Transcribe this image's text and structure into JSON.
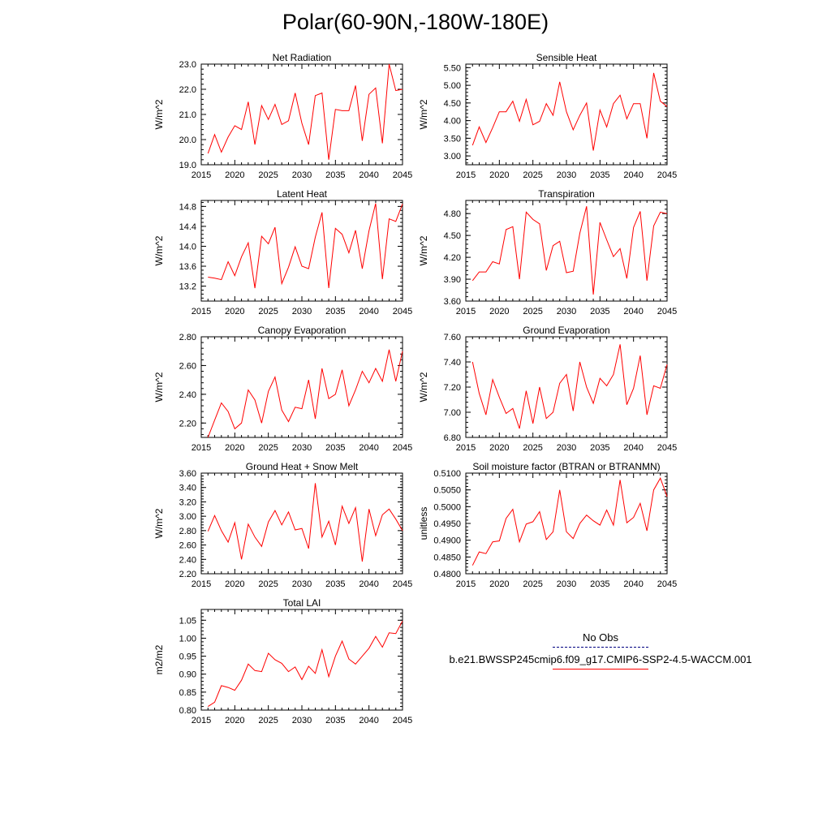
{
  "title": "Polar(60-90N,-180W-180E)",
  "colors": {
    "series": "#ff0000",
    "obs": "#000080",
    "axis": "#000000"
  },
  "legend": {
    "obs_label": "No Obs",
    "sim_label": "b.e21.BWSSP245cmip6.f09_g17.CMIP6-SSP2-4.5-WACCM.001"
  },
  "chart_data": [
    {
      "type": "line",
      "title": "Net Radiation",
      "ylabel": "W/m^2",
      "xlim": [
        2015,
        2045
      ],
      "ylim": [
        19.0,
        23.0
      ],
      "xticks": [
        2015,
        2020,
        2025,
        2030,
        2035,
        2040,
        2045
      ],
      "yticks": [
        "19.0",
        "20.0",
        "21.0",
        "22.0",
        "23.0"
      ],
      "x": [
        2016,
        2017,
        2018,
        2019,
        2020,
        2021,
        2022,
        2023,
        2024,
        2025,
        2026,
        2027,
        2028,
        2029,
        2030,
        2031,
        2032,
        2033,
        2034,
        2035,
        2036,
        2037,
        2038,
        2039,
        2040,
        2041,
        2042,
        2043,
        2044,
        2045
      ],
      "series": [
        {
          "name": "b.e21.BWSSP245cmip6.f09_g17.CMIP6-SSP2-4.5-WACCM.001",
          "values": [
            19.45,
            20.2,
            19.5,
            20.1,
            20.55,
            20.4,
            21.5,
            19.8,
            21.35,
            20.8,
            21.4,
            20.6,
            20.75,
            21.85,
            20.65,
            19.8,
            21.75,
            21.85,
            19.2,
            21.2,
            21.15,
            21.15,
            22.15,
            19.95,
            21.8,
            22.05,
            19.85,
            23.0,
            21.95,
            22.0
          ]
        }
      ]
    },
    {
      "type": "line",
      "title": "Sensible Heat",
      "ylabel": "W/m^2",
      "xlim": [
        2015,
        2045
      ],
      "ylim": [
        2.75,
        5.6
      ],
      "xticks": [
        2015,
        2020,
        2025,
        2030,
        2035,
        2040,
        2045
      ],
      "yticks": [
        "3.00",
        "3.50",
        "4.00",
        "4.50",
        "5.00",
        "5.50"
      ],
      "x": [
        2016,
        2017,
        2018,
        2019,
        2020,
        2021,
        2022,
        2023,
        2024,
        2025,
        2026,
        2027,
        2028,
        2029,
        2030,
        2031,
        2032,
        2033,
        2034,
        2035,
        2036,
        2037,
        2038,
        2039,
        2040,
        2041,
        2042,
        2043,
        2044,
        2045
      ],
      "series": [
        {
          "name": "b.e21.BWSSP245cmip6.f09_g17.CMIP6-SSP2-4.5-WACCM.001",
          "values": [
            3.3,
            3.82,
            3.38,
            3.8,
            4.25,
            4.25,
            4.55,
            3.98,
            4.6,
            3.88,
            3.98,
            4.48,
            4.15,
            5.1,
            4.25,
            3.74,
            4.15,
            4.5,
            3.15,
            4.3,
            3.82,
            4.48,
            4.72,
            4.05,
            4.48,
            4.48,
            3.5,
            5.35,
            4.55,
            4.4
          ]
        }
      ]
    },
    {
      "type": "line",
      "title": "Latent Heat",
      "ylabel": "W/m^2",
      "xlim": [
        2015,
        2045
      ],
      "ylim": [
        12.9,
        14.92
      ],
      "xticks": [
        2015,
        2020,
        2025,
        2030,
        2035,
        2040,
        2045
      ],
      "yticks": [
        "13.2",
        "13.6",
        "14.0",
        "14.4",
        "14.8"
      ],
      "x": [
        2016,
        2017,
        2018,
        2019,
        2020,
        2021,
        2022,
        2023,
        2024,
        2025,
        2026,
        2027,
        2028,
        2029,
        2030,
        2031,
        2032,
        2033,
        2034,
        2035,
        2036,
        2037,
        2038,
        2039,
        2040,
        2041,
        2042,
        2043,
        2044,
        2045
      ],
      "series": [
        {
          "name": "b.e21.BWSSP245cmip6.f09_g17.CMIP6-SSP2-4.5-WACCM.001",
          "values": [
            13.38,
            13.36,
            13.33,
            13.69,
            13.41,
            13.79,
            14.07,
            13.16,
            14.2,
            14.05,
            14.38,
            13.25,
            13.58,
            13.99,
            13.6,
            13.55,
            14.18,
            14.68,
            13.16,
            14.36,
            14.24,
            13.87,
            14.32,
            13.55,
            14.31,
            14.86,
            13.34,
            14.55,
            14.5,
            14.85
          ]
        }
      ]
    },
    {
      "type": "line",
      "title": "Transpiration",
      "ylabel": "W/m^2",
      "xlim": [
        2015,
        2045
      ],
      "ylim": [
        3.6,
        4.98
      ],
      "xticks": [
        2015,
        2020,
        2025,
        2030,
        2035,
        2040,
        2045
      ],
      "yticks": [
        "3.60",
        "3.90",
        "4.20",
        "4.50",
        "4.80"
      ],
      "x": [
        2016,
        2017,
        2018,
        2019,
        2020,
        2021,
        2022,
        2023,
        2024,
        2025,
        2026,
        2027,
        2028,
        2029,
        2030,
        2031,
        2032,
        2033,
        2034,
        2035,
        2036,
        2037,
        2038,
        2039,
        2040,
        2041,
        2042,
        2043,
        2044,
        2045
      ],
      "series": [
        {
          "name": "b.e21.BWSSP245cmip6.f09_g17.CMIP6-SSP2-4.5-WACCM.001",
          "values": [
            3.88,
            4.0,
            4.0,
            4.14,
            4.11,
            4.58,
            4.62,
            3.9,
            4.82,
            4.72,
            4.66,
            4.02,
            4.36,
            4.42,
            3.99,
            4.01,
            4.53,
            4.9,
            3.69,
            4.68,
            4.44,
            4.21,
            4.32,
            3.91,
            4.61,
            4.83,
            3.88,
            4.63,
            4.82,
            4.8
          ]
        }
      ]
    },
    {
      "type": "line",
      "title": "Canopy Evaporation",
      "ylabel": "W/m^2",
      "xlim": [
        2015,
        2045
      ],
      "ylim": [
        2.1,
        2.8
      ],
      "xticks": [
        2015,
        2020,
        2025,
        2030,
        2035,
        2040,
        2045
      ],
      "yticks": [
        "2.20",
        "2.40",
        "2.60",
        "2.80"
      ],
      "x": [
        2016,
        2017,
        2018,
        2019,
        2020,
        2021,
        2022,
        2023,
        2024,
        2025,
        2026,
        2027,
        2028,
        2029,
        2030,
        2031,
        2032,
        2033,
        2034,
        2035,
        2036,
        2037,
        2038,
        2039,
        2040,
        2041,
        2042,
        2043,
        2044,
        2045
      ],
      "series": [
        {
          "name": "b.e21.BWSSP245cmip6.f09_g17.CMIP6-SSP2-4.5-WACCM.001",
          "values": [
            2.1,
            2.22,
            2.34,
            2.28,
            2.16,
            2.2,
            2.43,
            2.36,
            2.2,
            2.42,
            2.52,
            2.29,
            2.21,
            2.31,
            2.3,
            2.5,
            2.23,
            2.58,
            2.37,
            2.4,
            2.57,
            2.32,
            2.43,
            2.56,
            2.48,
            2.58,
            2.49,
            2.71,
            2.49,
            2.7
          ]
        }
      ]
    },
    {
      "type": "line",
      "title": "Ground Evaporation",
      "ylabel": "W/m^2",
      "xlim": [
        2015,
        2045
      ],
      "ylim": [
        6.8,
        7.6
      ],
      "xticks": [
        2015,
        2020,
        2025,
        2030,
        2035,
        2040,
        2045
      ],
      "yticks": [
        "6.80",
        "7.00",
        "7.20",
        "7.40",
        "7.60"
      ],
      "x": [
        2016,
        2017,
        2018,
        2019,
        2020,
        2021,
        2022,
        2023,
        2024,
        2025,
        2026,
        2027,
        2028,
        2029,
        2030,
        2031,
        2032,
        2033,
        2034,
        2035,
        2036,
        2037,
        2038,
        2039,
        2040,
        2041,
        2042,
        2043,
        2044,
        2045
      ],
      "series": [
        {
          "name": "b.e21.BWSSP245cmip6.f09_g17.CMIP6-SSP2-4.5-WACCM.001",
          "values": [
            7.4,
            7.15,
            6.98,
            7.26,
            7.12,
            6.99,
            7.03,
            6.87,
            7.17,
            6.91,
            7.2,
            6.95,
            7.0,
            7.23,
            7.3,
            7.01,
            7.4,
            7.2,
            7.07,
            7.27,
            7.21,
            7.3,
            7.54,
            7.06,
            7.19,
            7.45,
            6.98,
            7.21,
            7.19,
            7.38
          ]
        }
      ]
    },
    {
      "type": "line",
      "title": "Ground Heat + Snow Melt",
      "ylabel": "W/m^2",
      "xlim": [
        2015,
        2045
      ],
      "ylim": [
        2.2,
        3.6
      ],
      "xticks": [
        2015,
        2020,
        2025,
        2030,
        2035,
        2040,
        2045
      ],
      "yticks": [
        "2.20",
        "2.40",
        "2.60",
        "2.80",
        "3.00",
        "3.20",
        "3.40",
        "3.60"
      ],
      "x": [
        2016,
        2017,
        2018,
        2019,
        2020,
        2021,
        2022,
        2023,
        2024,
        2025,
        2026,
        2027,
        2028,
        2029,
        2030,
        2031,
        2032,
        2033,
        2034,
        2035,
        2036,
        2037,
        2038,
        2039,
        2040,
        2041,
        2042,
        2043,
        2044,
        2045
      ],
      "series": [
        {
          "name": "b.e21.BWSSP245cmip6.f09_g17.CMIP6-SSP2-4.5-WACCM.001",
          "values": [
            2.79,
            3.01,
            2.8,
            2.64,
            2.91,
            2.4,
            2.89,
            2.71,
            2.58,
            2.92,
            3.08,
            2.88,
            3.06,
            2.81,
            2.83,
            2.55,
            3.46,
            2.71,
            2.93,
            2.6,
            3.14,
            2.9,
            3.12,
            2.37,
            3.1,
            2.73,
            3.02,
            3.1,
            2.96,
            2.8
          ]
        }
      ]
    },
    {
      "type": "line",
      "title": "Soil moisture factor (BTRAN or BTRANMN)",
      "ylabel": "unitless",
      "xlim": [
        2015,
        2045
      ],
      "ylim": [
        0.48,
        0.51
      ],
      "xticks": [
        2015,
        2020,
        2025,
        2030,
        2035,
        2040,
        2045
      ],
      "yticks": [
        "0.4800",
        "0.4850",
        "0.4900",
        "0.4950",
        "0.5000",
        "0.5050",
        "0.5100"
      ],
      "x": [
        2016,
        2017,
        2018,
        2019,
        2020,
        2021,
        2022,
        2023,
        2024,
        2025,
        2026,
        2027,
        2028,
        2029,
        2030,
        2031,
        2032,
        2033,
        2034,
        2035,
        2036,
        2037,
        2038,
        2039,
        2040,
        2041,
        2042,
        2043,
        2044,
        2045
      ],
      "series": [
        {
          "name": "b.e21.BWSSP245cmip6.f09_g17.CMIP6-SSP2-4.5-WACCM.001",
          "values": [
            0.4825,
            0.4865,
            0.486,
            0.4895,
            0.4898,
            0.4965,
            0.4992,
            0.4895,
            0.4948,
            0.4955,
            0.4985,
            0.4902,
            0.4925,
            0.505,
            0.4925,
            0.4905,
            0.495,
            0.4975,
            0.4958,
            0.4945,
            0.499,
            0.4945,
            0.508,
            0.4952,
            0.4968,
            0.501,
            0.4928,
            0.505,
            0.5085,
            0.503
          ]
        }
      ]
    },
    {
      "type": "line",
      "title": "Total LAI",
      "ylabel": "m2/m2",
      "xlim": [
        2015,
        2045
      ],
      "ylim": [
        0.8,
        1.08
      ],
      "xticks": [
        2015,
        2020,
        2025,
        2030,
        2035,
        2040,
        2045
      ],
      "yticks": [
        "0.80",
        "0.85",
        "0.90",
        "0.95",
        "1.00",
        "1.05"
      ],
      "x": [
        2016,
        2017,
        2018,
        2019,
        2020,
        2021,
        2022,
        2023,
        2024,
        2025,
        2026,
        2027,
        2028,
        2029,
        2030,
        2031,
        2032,
        2033,
        2034,
        2035,
        2036,
        2037,
        2038,
        2039,
        2040,
        2041,
        2042,
        2043,
        2044,
        2045
      ],
      "series": [
        {
          "name": "b.e21.BWSSP245cmip6.f09_g17.CMIP6-SSP2-4.5-WACCM.001",
          "values": [
            0.81,
            0.822,
            0.868,
            0.863,
            0.855,
            0.883,
            0.928,
            0.91,
            0.907,
            0.958,
            0.94,
            0.93,
            0.907,
            0.92,
            0.885,
            0.922,
            0.902,
            0.968,
            0.893,
            0.95,
            0.992,
            0.942,
            0.928,
            0.95,
            0.972,
            1.005,
            0.975,
            1.015,
            1.013,
            1.048
          ]
        }
      ]
    }
  ]
}
